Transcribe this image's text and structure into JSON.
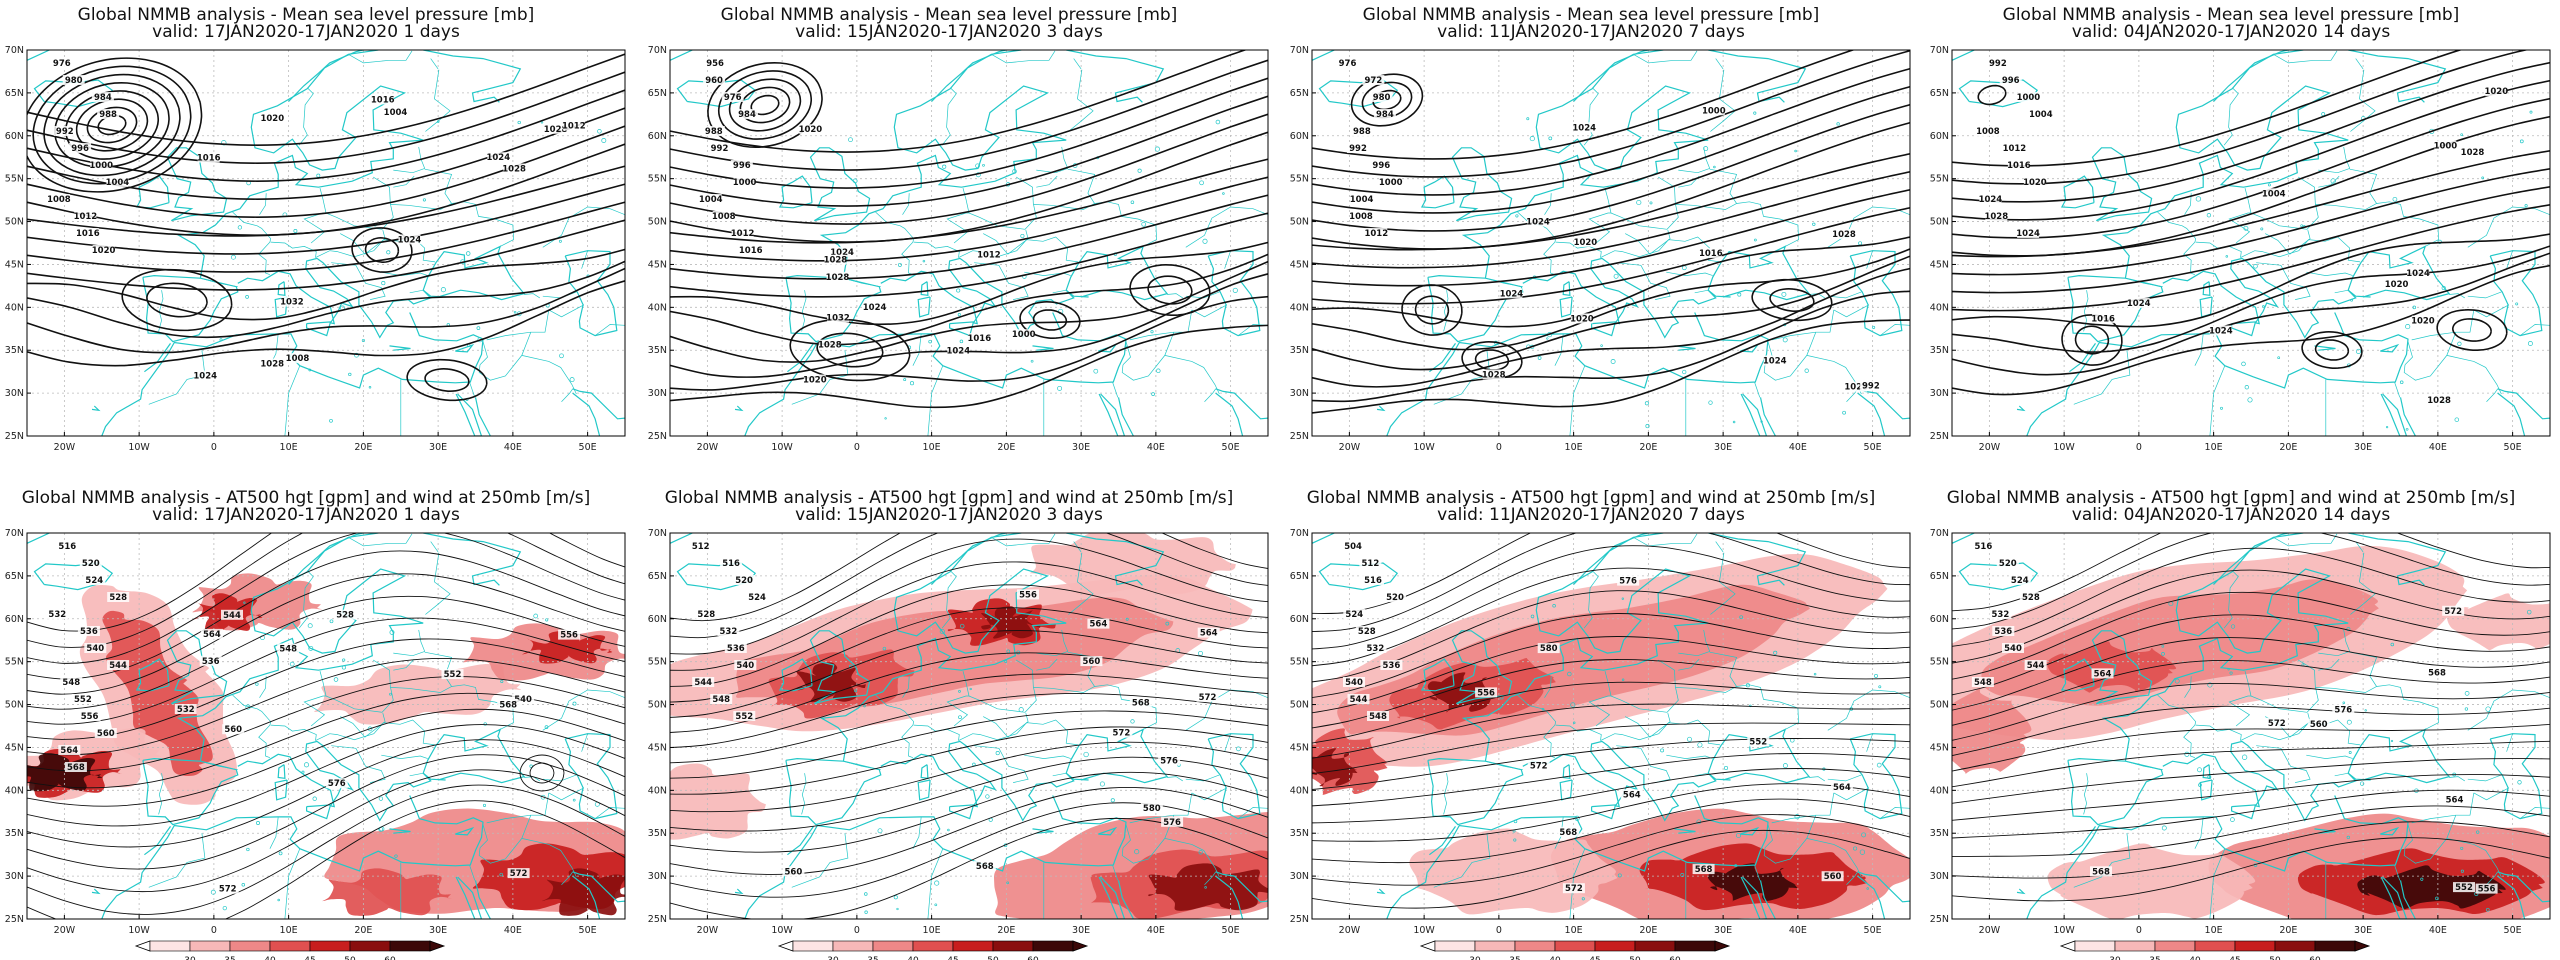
{
  "rows": [
    {
      "id": "mslp",
      "title": "Global NMMB analysis - Mean sea level pressure [mb]",
      "panels": [
        {
          "valid": "valid: 17JAN2020-17JAN2020   1 days",
          "labels": [
            "976",
            "980",
            "984",
            "988",
            "992",
            "996",
            "1000",
            "1004",
            "1008",
            "1012",
            "1016",
            "1020",
            "1024",
            "1028",
            "1032",
            "1028",
            "1024",
            "1020",
            "1016",
            "1012",
            "1008",
            "1004",
            "1024",
            "1028",
            "1016"
          ]
        },
        {
          "valid": "valid: 15JAN2020-17JAN2020   3 days",
          "labels": [
            "956",
            "960",
            "976",
            "984",
            "988",
            "992",
            "996",
            "1000",
            "1004",
            "1008",
            "1012",
            "1016",
            "1020",
            "1024",
            "1028",
            "1024",
            "1028",
            "1032",
            "1016",
            "1020",
            "1024",
            "1028",
            "1000",
            "1012"
          ]
        },
        {
          "valid": "valid: 11JAN2020-17JAN2020   7 days",
          "labels": [
            "976",
            "972",
            "980",
            "984",
            "988",
            "992",
            "996",
            "1000",
            "1004",
            "1008",
            "1012",
            "1016",
            "1020",
            "1024",
            "1028",
            "1024",
            "1028",
            "1020",
            "1024",
            "1028",
            "1024",
            "992",
            "1000"
          ]
        },
        {
          "valid": "valid: 04JAN2020-17JAN2020   14 days",
          "labels": [
            "992",
            "996",
            "1000",
            "1004",
            "1008",
            "1012",
            "1016",
            "1020",
            "1024",
            "1028",
            "1024",
            "1028",
            "1024",
            "1020",
            "1016",
            "1020",
            "1024",
            "1020",
            "1028",
            "1024",
            "1000",
            "1004"
          ]
        }
      ]
    },
    {
      "id": "z500",
      "title": "Global NMMB analysis - AT500 hgt [gpm] and wind at 250mb [m/s]",
      "panels": [
        {
          "valid": "valid: 17JAN2020-17JAN2020   1 days",
          "labels": [
            "516",
            "520",
            "524",
            "528",
            "532",
            "536",
            "540",
            "544",
            "548",
            "552",
            "556",
            "560",
            "564",
            "568",
            "572",
            "576",
            "564",
            "560",
            "556",
            "528",
            "532",
            "536",
            "540",
            "544",
            "548",
            "552",
            "572",
            "568"
          ]
        },
        {
          "valid": "valid: 15JAN2020-17JAN2020   3 days",
          "labels": [
            "512",
            "516",
            "520",
            "524",
            "528",
            "532",
            "536",
            "540",
            "544",
            "548",
            "552",
            "556",
            "560",
            "564",
            "568",
            "572",
            "576",
            "580",
            "564",
            "568",
            "572",
            "576",
            "560"
          ]
        },
        {
          "valid": "valid: 11JAN2020-17JAN2020   7 days",
          "labels": [
            "504",
            "512",
            "516",
            "520",
            "524",
            "528",
            "532",
            "536",
            "540",
            "544",
            "548",
            "552",
            "556",
            "560",
            "564",
            "568",
            "572",
            "576",
            "580",
            "564",
            "568",
            "572"
          ]
        },
        {
          "valid": "valid: 04JAN2020-17JAN2020   14 days",
          "labels": [
            "516",
            "520",
            "524",
            "528",
            "532",
            "536",
            "540",
            "544",
            "548",
            "552",
            "556",
            "560",
            "564",
            "568",
            "572",
            "576",
            "564",
            "568",
            "572"
          ]
        }
      ]
    }
  ],
  "axes": {
    "lon_ticks": [
      "20W",
      "10W",
      "0",
      "10E",
      "20E",
      "30E",
      "40E",
      "50E"
    ],
    "lat_ticks": [
      "70N",
      "65N",
      "60N",
      "55N",
      "50N",
      "45N",
      "40N",
      "35N",
      "30N",
      "25N"
    ]
  },
  "colorbar": {
    "ticks": [
      "30",
      "35",
      "40",
      "45",
      "50",
      "60"
    ],
    "colors": [
      "#fde4e4",
      "#f7b8b8",
      "#ee8888",
      "#e05050",
      "#c81e1e",
      "#8a0e0e",
      "#3c0808"
    ]
  },
  "colors": {
    "coast": "#22c8c8",
    "contour": "#111111",
    "grid": "#bbbbbb"
  }
}
